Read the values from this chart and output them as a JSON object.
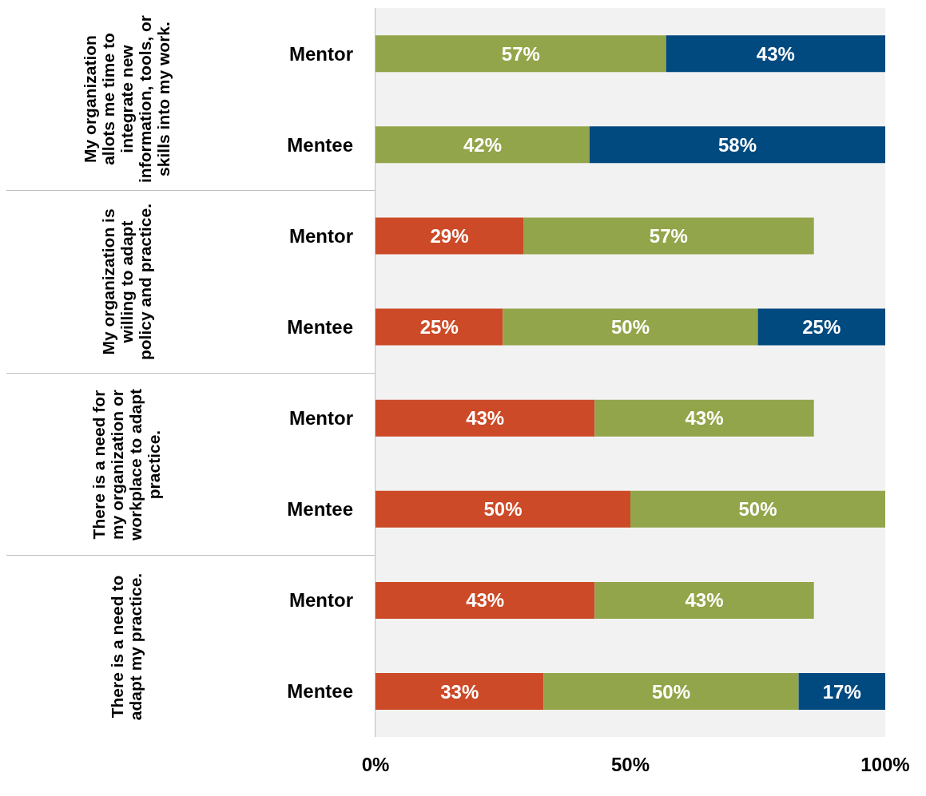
{
  "chart_data": {
    "type": "bar",
    "orientation": "horizontal",
    "stacked": true,
    "categories": [
      "Mentor",
      "Mentee",
      "Mentor",
      "Mentee",
      "Mentor",
      "Mentee",
      "Mentor",
      "Mentee"
    ],
    "series": [
      {
        "color": "#cc4a27",
        "values": [
          null,
          null,
          29,
          25,
          43,
          50,
          43,
          33
        ],
        "value_labels": [
          null,
          null,
          "29%",
          "25%",
          "43%",
          "50%",
          "43%",
          "33%"
        ]
      },
      {
        "color": "#93a54a",
        "values": [
          57,
          42,
          57,
          50,
          43,
          50,
          43,
          50
        ],
        "value_labels": [
          "57%",
          "42%",
          "57%",
          "50%",
          "43%",
          "50%",
          "43%",
          "50%"
        ]
      },
      {
        "color": "#004a80",
        "values": [
          43,
          58,
          null,
          25,
          null,
          null,
          null,
          17
        ],
        "value_labels": [
          "43%",
          "58%",
          null,
          "25%",
          null,
          null,
          null,
          "17%"
        ]
      }
    ],
    "xlim": [
      0,
      100
    ],
    "xticks": [
      {
        "value": 0,
        "label": "0%"
      },
      {
        "value": 50,
        "label": "50%"
      },
      {
        "value": 100,
        "label": "100%"
      }
    ],
    "annotations": [
      "My organization allots me time to integrate new information, tools, or skills into my work.",
      "My organization is willing to adapt policy and practice.",
      "There is a need for my organization or workplace to adapt practice.",
      "There is a need to adapt my practice."
    ],
    "grid": false,
    "legend": false
  }
}
